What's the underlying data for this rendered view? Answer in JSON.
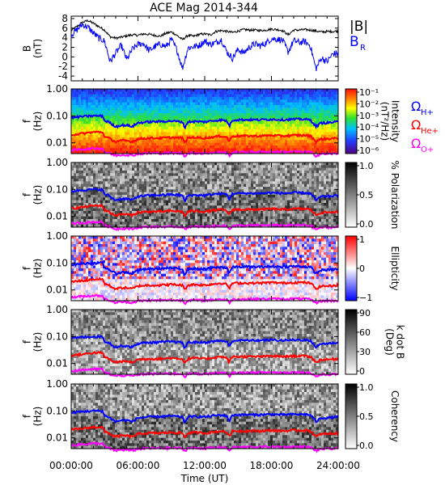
{
  "title": "ACE Mag 2014-344",
  "chart_data": [
    {
      "type": "line",
      "title": "ACE Mag 2014-344",
      "ylabel": "B (nT)",
      "ylabel_lines": [
        "B",
        "(nT)"
      ],
      "ylim": [
        -5,
        8.5
      ],
      "yticks": [
        "8",
        "6",
        "4",
        "2",
        "0",
        "-2",
        "-4"
      ],
      "xlim_hours": [
        0,
        24
      ],
      "series": [
        {
          "name": "|B|",
          "color": "#000000",
          "hours": [
            0,
            0.5,
            1,
            1.5,
            2,
            2.5,
            3,
            3.5,
            4,
            4.5,
            5,
            5.5,
            6,
            6.5,
            7,
            7.5,
            8,
            8.5,
            9,
            9.5,
            10,
            10.5,
            11,
            11.5,
            12,
            12.5,
            13,
            13.5,
            14,
            14.5,
            15,
            15.5,
            16,
            16.5,
            17,
            17.5,
            18,
            18.5,
            19,
            19.5,
            20,
            20.5,
            21,
            21.5,
            22,
            22.5,
            23,
            23.5,
            24
          ],
          "values": [
            5.5,
            6.3,
            7.2,
            7.6,
            7.0,
            6.3,
            5.6,
            4.2,
            3.9,
            4.1,
            4.4,
            4.6,
            4.5,
            4.8,
            4.7,
            4.5,
            4.3,
            4.9,
            5.2,
            4.5,
            3.6,
            4.5,
            4.3,
            4.7,
            4.8,
            4.6,
            5.3,
            5.5,
            5.3,
            5.1,
            5.4,
            5.7,
            5.6,
            5.6,
            5.5,
            5.6,
            5.8,
            5.7,
            5.5,
            4.6,
            5.6,
            5.6,
            5.7,
            5.6,
            5.4,
            5.2,
            5.3,
            5.3,
            5.4
          ]
        },
        {
          "name": "B_R",
          "color": "#0000ff",
          "hours": [
            0,
            0.5,
            1,
            1.5,
            2,
            2.5,
            3,
            3.5,
            4,
            4.5,
            5,
            5.5,
            6,
            6.5,
            7,
            7.5,
            8,
            8.5,
            9,
            9.5,
            10,
            10.5,
            11,
            11.5,
            12,
            12.5,
            13,
            13.5,
            14,
            14.5,
            15,
            15.5,
            16,
            16.5,
            17,
            17.5,
            18,
            18.5,
            19,
            19.5,
            20,
            20.5,
            21,
            21.5,
            22,
            22.5,
            23,
            23.5,
            24
          ],
          "values": [
            4.6,
            5.6,
            6.8,
            6.2,
            5.0,
            3.9,
            3.3,
            -1.0,
            0.8,
            2.4,
            -0.6,
            1.6,
            2.6,
            2.8,
            1.3,
            2.1,
            2.7,
            2.1,
            3.6,
            1.5,
            -2.4,
            1.9,
            2.1,
            2.4,
            3.3,
            2.6,
            3.0,
            3.6,
            1.0,
            -0.3,
            1.6,
            0.8,
            2.0,
            2.7,
            2.3,
            2.9,
            3.8,
            3.7,
            3.5,
            1.0,
            3.4,
            3.0,
            3.2,
            2.3,
            -2.5,
            -0.2,
            -1.0,
            0.6,
            0.8
          ]
        }
      ],
      "legend": [
        "|B|",
        "B_R"
      ]
    },
    {
      "type": "heatmap",
      "ylabel": "f (Hz)",
      "ylabel_lines": [
        "f",
        "(Hz)"
      ],
      "yscale": "log",
      "ylim": [
        0.004,
        1.0
      ],
      "yticks": [
        "1.00",
        "0.10",
        "0.01"
      ],
      "colorbar_label": "Intensity (nT^2/Hz)",
      "colorbar_label_lines": [
        "Intensity",
        "(nT²/Hz)"
      ],
      "colorbar_ticks": [
        "10⁻¹",
        "10⁻²",
        "10⁻³",
        "10⁻⁴",
        "10⁻⁵",
        "10⁻⁶"
      ],
      "colormap": "rainbow",
      "gyrofrequency_labels": [
        {
          "text": "Ω",
          "sub": "H+",
          "color": "#0000ff"
        },
        {
          "text": "Ω",
          "sub": "He+",
          "color": "#ff0000"
        },
        {
          "text": "Ω",
          "sub": "O+",
          "color": "#ff00ff"
        }
      ]
    },
    {
      "type": "heatmap",
      "ylabel": "f (Hz)",
      "ylabel_lines": [
        "f",
        "(Hz)"
      ],
      "yscale": "log",
      "ylim": [
        0.004,
        1.0
      ],
      "yticks": [
        "1.00",
        "0.10",
        "0.01"
      ],
      "colorbar_label": "% Polarization",
      "colorbar_ticks": [
        "1.0",
        "0.5",
        "0.0"
      ],
      "colormap": "gray"
    },
    {
      "type": "heatmap",
      "ylabel": "f (Hz)",
      "ylabel_lines": [
        "f",
        "(Hz)"
      ],
      "yscale": "log",
      "ylim": [
        0.004,
        1.0
      ],
      "yticks": [
        "1.00",
        "0.10",
        "0.01"
      ],
      "colorbar_label": "Ellipticity",
      "colorbar_ticks": [
        "1",
        "0",
        "−1"
      ],
      "colormap": "blue-white-red"
    },
    {
      "type": "heatmap",
      "ylabel": "f (Hz)",
      "ylabel_lines": [
        "f",
        "(Hz)"
      ],
      "yscale": "log",
      "ylim": [
        0.004,
        1.0
      ],
      "yticks": [
        "1.00",
        "0.10",
        "0.01"
      ],
      "colorbar_label": "k dot B (Deg)",
      "colorbar_label_lines": [
        "k dot B",
        "(Deg)"
      ],
      "colorbar_ticks": [
        "90",
        "60",
        "30",
        "0"
      ],
      "colormap": "gray"
    },
    {
      "type": "heatmap",
      "ylabel": "f (Hz)",
      "ylabel_lines": [
        "f",
        "(Hz)"
      ],
      "yscale": "log",
      "ylim": [
        0.004,
        1.0
      ],
      "yticks": [
        "1.00",
        "0.10",
        "0.01"
      ],
      "colorbar_label": "Coherency",
      "colorbar_ticks": [
        "1.0",
        "0.5",
        "0.0"
      ],
      "colormap": "gray"
    }
  ],
  "gyrofrequency_lines": {
    "hours": [
      0,
      1,
      2,
      2.8,
      3.0,
      3.4,
      3.6,
      4.0,
      4.5,
      5.0,
      5.5,
      6.0,
      7,
      8,
      9,
      10,
      10.2,
      10.5,
      11,
      12,
      13,
      13.5,
      14,
      14.2,
      14.5,
      15,
      16,
      17,
      18,
      19,
      20,
      21,
      21.5,
      22,
      22.5,
      23,
      24
    ],
    "H_plus_hz": [
      0.085,
      0.095,
      0.1,
      0.1,
      0.065,
      0.06,
      0.05,
      0.04,
      0.045,
      0.045,
      0.04,
      0.055,
      0.06,
      0.062,
      0.065,
      0.06,
      0.035,
      0.06,
      0.062,
      0.06,
      0.068,
      0.07,
      0.065,
      0.04,
      0.07,
      0.072,
      0.072,
      0.072,
      0.075,
      0.072,
      0.075,
      0.075,
      0.07,
      0.04,
      0.055,
      0.055,
      0.06
    ],
    "He_plus_hz": [
      0.02,
      0.022,
      0.025,
      0.025,
      0.017,
      0.015,
      0.013,
      0.011,
      0.012,
      0.012,
      0.011,
      0.014,
      0.015,
      0.015,
      0.016,
      0.015,
      0.01,
      0.015,
      0.016,
      0.015,
      0.017,
      0.018,
      0.016,
      0.011,
      0.018,
      0.018,
      0.018,
      0.018,
      0.019,
      0.018,
      0.019,
      0.019,
      0.018,
      0.011,
      0.014,
      0.014,
      0.015
    ],
    "O_plus_hz": [
      0.0053,
      0.0058,
      0.0062,
      0.0062,
      0.0045,
      0.0042,
      0.0038,
      0.0034,
      0.0036,
      0.0036,
      0.0034,
      0.0039,
      0.0041,
      0.0041,
      0.0042,
      0.0041,
      0.0032,
      0.0041,
      0.0042,
      0.0041,
      0.0044,
      0.0045,
      0.0043,
      0.0033,
      0.0045,
      0.0045,
      0.0046,
      0.0046,
      0.0047,
      0.0046,
      0.0047,
      0.0047,
      0.0045,
      0.0033,
      0.0039,
      0.0039,
      0.004
    ]
  },
  "x_axis": {
    "label": "Time (UT)",
    "ticks": [
      "00:00:00",
      "06:00:00",
      "12:00:00",
      "18:00:00",
      "24:00:00"
    ],
    "tick_hours": [
      0,
      6,
      12,
      18,
      24
    ]
  },
  "colors": {
    "H_plus": "#0000ff",
    "He_plus": "#ff0000",
    "O_plus": "#ff00ff",
    "B_total": "#000000",
    "B_R": "#0000ff"
  }
}
